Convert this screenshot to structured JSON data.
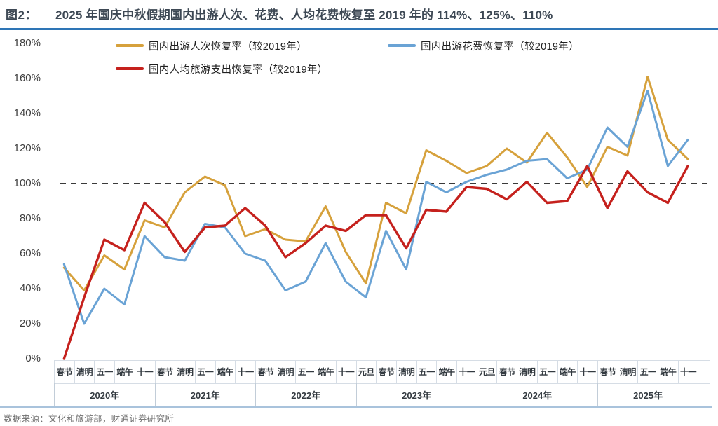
{
  "figure_label": "图2：",
  "title": "2025 年国庆中秋假期国内出游人次、花费、人均花费恢复至 2019 年的 114%、125%、110%",
  "source": "数据来源：文化和旅游部，财通证券研究所",
  "accent_colors": {
    "title_rule": "#2e75b6",
    "reference_line": "#3a3a3a"
  },
  "chart_data": {
    "type": "line",
    "title": "2025 年国庆中秋假期国内出游人次、花费、人均花费恢复至 2019 年的 114%、125%、110%",
    "ylim": [
      0,
      180
    ],
    "y_ticks": [
      "180%",
      "160%",
      "140%",
      "120%",
      "100%",
      "80%",
      "60%",
      "40%",
      "20%",
      "0%"
    ],
    "reference_line_value": 100,
    "grid": "off",
    "legend_position": "top",
    "x_groups": [
      {
        "year": "2020年",
        "holidays": [
          "春节",
          "清明",
          "五一",
          "端午",
          "十一"
        ]
      },
      {
        "year": "2021年",
        "holidays": [
          "春节",
          "清明",
          "五一",
          "端午",
          "十一"
        ]
      },
      {
        "year": "2022年",
        "holidays": [
          "春节",
          "清明",
          "五一",
          "端午",
          "十一"
        ]
      },
      {
        "year": "2023年",
        "holidays": [
          "元旦",
          "春节",
          "清明",
          "五一",
          "端午",
          "十一"
        ]
      },
      {
        "year": "2024年",
        "holidays": [
          "元旦",
          "春节",
          "清明",
          "五一",
          "端午",
          "十一"
        ]
      },
      {
        "year": "2025年",
        "holidays": [
          "春节",
          "清明",
          "五一",
          "端午",
          "十一"
        ]
      }
    ],
    "series": [
      {
        "name": "国内出游人次恢复率（较2019年）",
        "color": "#d6a13c",
        "values": [
          52,
          39,
          59,
          51,
          79,
          75,
          95,
          104,
          99,
          70,
          74,
          68,
          67,
          87,
          61,
          43,
          89,
          83,
          119,
          113,
          106,
          110,
          120,
          112,
          129,
          115,
          98,
          121,
          116,
          161,
          125,
          114
        ]
      },
      {
        "name": "国内出游花费恢复率（较2019年）",
        "color": "#6aa3d5",
        "values": [
          54,
          20,
          40,
          31,
          70,
          58,
          56,
          77,
          75,
          60,
          56,
          39,
          44,
          66,
          44,
          35,
          73,
          51,
          101,
          95,
          101,
          105,
          108,
          113,
          114,
          103,
          108,
          132,
          121,
          153,
          110,
          125
        ]
      },
      {
        "name": "国内人均旅游支出恢复率（较2019年）",
        "color": "#c5211d",
        "values": [
          0,
          35,
          68,
          62,
          89,
          78,
          61,
          75,
          76,
          86,
          76,
          58,
          66,
          76,
          73,
          82,
          82,
          63,
          85,
          84,
          98,
          97,
          91,
          101,
          89,
          90,
          110,
          86,
          107,
          95,
          89,
          110
        ]
      }
    ]
  }
}
